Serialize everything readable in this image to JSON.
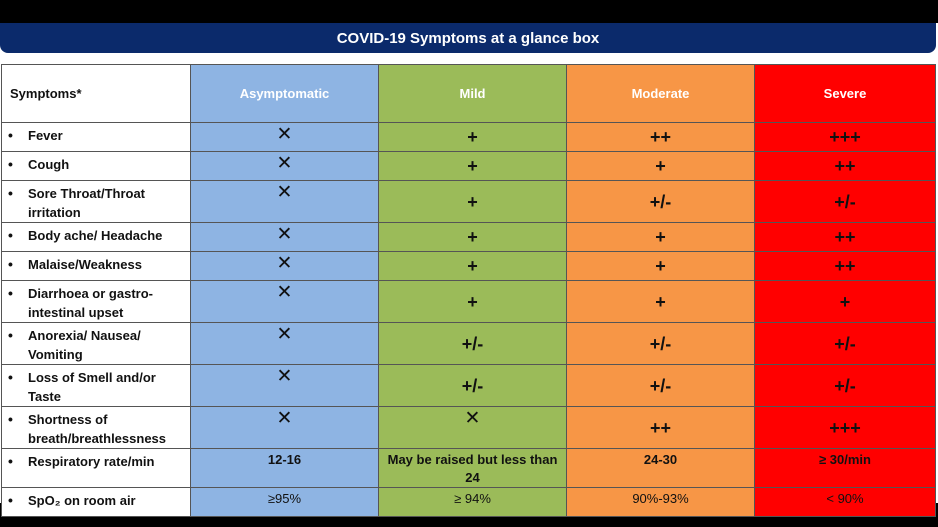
{
  "title": "COVID-19 Symptoms at a glance box",
  "headers": {
    "symptoms": "Symptoms*",
    "asymptomatic": "Asymptomatic",
    "mild": "Mild",
    "moderate": "Moderate",
    "severe": "Severe"
  },
  "bullet": "•",
  "rows": [
    {
      "symptom": "Fever",
      "asymptomatic": "✕",
      "mild": "+",
      "moderate": "++",
      "severe": "+++"
    },
    {
      "symptom": "Cough",
      "asymptomatic": "✕",
      "mild": "+",
      "moderate": "+",
      "severe": "++"
    },
    {
      "symptom": "Sore Throat/Throat irritation",
      "asymptomatic": "✕",
      "mild": "+",
      "moderate": "+/-",
      "severe": "+/-"
    },
    {
      "symptom": "Body ache/ Headache",
      "asymptomatic": "✕",
      "mild": "+",
      "moderate": "+",
      "severe": "++"
    },
    {
      "symptom": "Malaise/Weakness",
      "asymptomatic": "✕",
      "mild": "+",
      "moderate": "+",
      "severe": "++"
    },
    {
      "symptom": "Diarrhoea or gastro-intestinal upset",
      "asymptomatic": "✕",
      "mild": "+",
      "moderate": "+",
      "severe": "+"
    },
    {
      "symptom": "Anorexia/ Nausea/ Vomiting",
      "asymptomatic": "✕",
      "mild": "+/-",
      "moderate": "+/-",
      "severe": "+/-"
    },
    {
      "symptom": "Loss of Smell and/or Taste",
      "asymptomatic": "✕",
      "mild": "+/-",
      "moderate": "+/-",
      "severe": "+/-"
    },
    {
      "symptom": "Shortness of breath/breathlessness",
      "asymptomatic": "✕",
      "mild": "✕",
      "moderate": "++",
      "severe": "+++"
    },
    {
      "symptom": "Respiratory rate/min",
      "asymptomatic": "12-16",
      "mild": "May be raised but less than 24",
      "moderate": "24-30",
      "severe": "≥ 30/min"
    },
    {
      "symptom": "SpO₂ on room air",
      "asymptomatic": "≥95%",
      "mild": "≥ 94%",
      "moderate": "90%-93%",
      "severe": "< 90%"
    }
  ],
  "colors": {
    "title_bar": "#0b2a6b",
    "asymptomatic": "#8eb4e3",
    "mild": "#9bbb59",
    "moderate": "#f79646",
    "severe": "#ff0000"
  }
}
